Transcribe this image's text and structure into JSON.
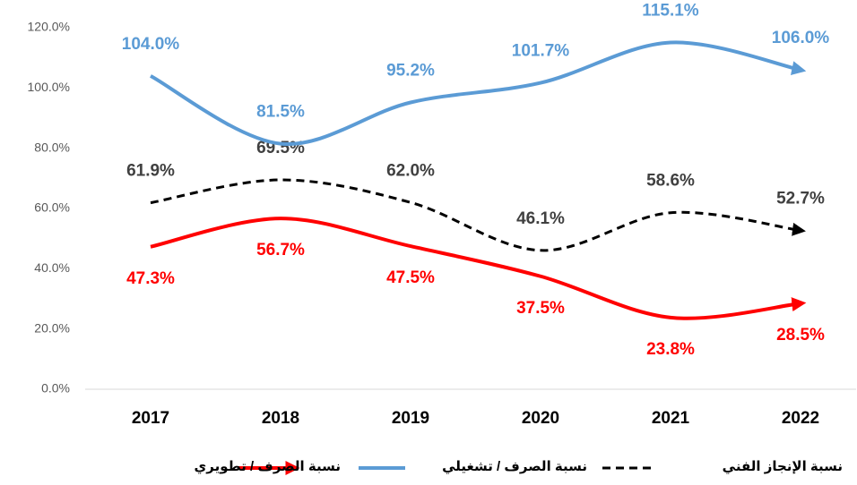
{
  "chart_data": {
    "type": "line",
    "categories": [
      "2017",
      "2018",
      "2019",
      "2020",
      "2021",
      "2022"
    ],
    "series": [
      {
        "name": "نسبة الإنجاز الفني",
        "color": "#000000",
        "dashed": true,
        "values": [
          61.9,
          69.5,
          62.0,
          46.1,
          58.6,
          52.7
        ],
        "value_labels": [
          "61.9%",
          "69.5%",
          "62.0%",
          "46.1%",
          "58.6%",
          "52.7%"
        ]
      },
      {
        "name": "نسبة الصرف / تشغيلي",
        "color": "#5b9bd5",
        "dashed": false,
        "values": [
          104.0,
          81.5,
          95.2,
          101.7,
          115.1,
          106.0
        ],
        "value_labels": [
          "104.0%",
          "81.5%",
          "95.2%",
          "101.7%",
          "115.1%",
          "106.0%"
        ]
      },
      {
        "name": "نسبة الصرف / تطويري",
        "color": "#ff0000",
        "dashed": false,
        "values": [
          47.3,
          56.7,
          47.5,
          37.5,
          23.8,
          28.5
        ],
        "value_labels": [
          "47.3%",
          "56.7%",
          "47.5%",
          "37.5%",
          "23.8%",
          "28.5%"
        ]
      }
    ],
    "ylim": [
      0,
      120
    ],
    "yticks": [
      {
        "value": 0,
        "label": "0.0%"
      },
      {
        "value": 20,
        "label": "20.0%"
      },
      {
        "value": 40,
        "label": "40.0%"
      },
      {
        "value": 60,
        "label": "60.0%"
      },
      {
        "value": 80,
        "label": "80.0%"
      },
      {
        "value": 100,
        "label": "100.0%"
      },
      {
        "value": 120,
        "label": "120.0%"
      }
    ],
    "grid": false
  }
}
